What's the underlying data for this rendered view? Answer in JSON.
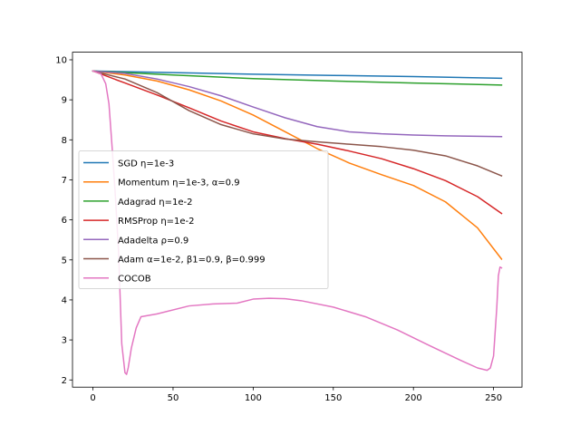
{
  "chart_data": {
    "type": "line",
    "title": "",
    "xlabel": "",
    "ylabel": "",
    "xlim": [
      -12.75,
      267.75
    ],
    "ylim": [
      1.82,
      10.19
    ],
    "xticks": [
      0,
      50,
      100,
      150,
      200,
      250
    ],
    "yticks": [
      2,
      3,
      4,
      5,
      6,
      7,
      8,
      9,
      10
    ],
    "grid": false,
    "legend_position": "center-left",
    "series": [
      {
        "name": "SGD η=1e-3",
        "color": "#1f77b4",
        "x": [
          0,
          50,
          100,
          150,
          200,
          255
        ],
        "y": [
          9.72,
          9.68,
          9.64,
          9.61,
          9.58,
          9.54
        ]
      },
      {
        "name": "Momentum η=1e-3, α=0.9",
        "color": "#ff7f0e",
        "x": [
          0,
          20,
          40,
          60,
          80,
          100,
          120,
          140,
          160,
          180,
          200,
          220,
          240,
          255
        ],
        "y": [
          9.72,
          9.62,
          9.47,
          9.25,
          8.97,
          8.62,
          8.2,
          7.78,
          7.42,
          7.13,
          6.86,
          6.45,
          5.8,
          5.02
        ]
      },
      {
        "name": "Adagrad η=1e-2",
        "color": "#2ca02c",
        "x": [
          0,
          50,
          100,
          150,
          200,
          255
        ],
        "y": [
          9.72,
          9.62,
          9.53,
          9.47,
          9.42,
          9.37
        ]
      },
      {
        "name": "RMSProp η=1e-2",
        "color": "#d62728",
        "x": [
          0,
          20,
          40,
          60,
          80,
          100,
          120,
          140,
          160,
          180,
          200,
          220,
          240,
          255
        ],
        "y": [
          9.72,
          9.42,
          9.12,
          8.8,
          8.47,
          8.2,
          8.03,
          7.89,
          7.72,
          7.53,
          7.28,
          6.98,
          6.58,
          6.16
        ]
      },
      {
        "name": "Adadelta ρ=0.9",
        "color": "#9467bd",
        "x": [
          0,
          20,
          40,
          60,
          80,
          100,
          120,
          140,
          160,
          180,
          200,
          220,
          240,
          255
        ],
        "y": [
          9.72,
          9.66,
          9.52,
          9.33,
          9.1,
          8.82,
          8.55,
          8.33,
          8.2,
          8.15,
          8.12,
          8.1,
          8.09,
          8.08
        ]
      },
      {
        "name": "Adam α=1e-2, β1=0.9, β=0.999",
        "color": "#8c564b",
        "x": [
          0,
          20,
          40,
          60,
          80,
          100,
          120,
          140,
          160,
          180,
          200,
          220,
          240,
          255
        ],
        "y": [
          9.72,
          9.52,
          9.18,
          8.73,
          8.38,
          8.15,
          8.02,
          7.95,
          7.89,
          7.83,
          7.74,
          7.6,
          7.35,
          7.1
        ]
      },
      {
        "name": "COCOB",
        "color": "#e377c2",
        "x": [
          0,
          5,
          8,
          10,
          12,
          14,
          16,
          18,
          20,
          21,
          22,
          24,
          27,
          30,
          40,
          60,
          75,
          90,
          100,
          110,
          120,
          130,
          150,
          170,
          190,
          210,
          230,
          240,
          246,
          248,
          250,
          252,
          253,
          254,
          255
        ],
        "y": [
          9.72,
          9.65,
          9.4,
          8.9,
          7.8,
          6.6,
          5.2,
          2.9,
          2.18,
          2.14,
          2.3,
          2.8,
          3.3,
          3.58,
          3.65,
          3.85,
          3.9,
          3.92,
          4.02,
          4.04,
          4.03,
          3.98,
          3.82,
          3.58,
          3.25,
          2.86,
          2.48,
          2.3,
          2.24,
          2.3,
          2.6,
          3.8,
          4.6,
          4.82,
          4.8
        ]
      }
    ]
  }
}
